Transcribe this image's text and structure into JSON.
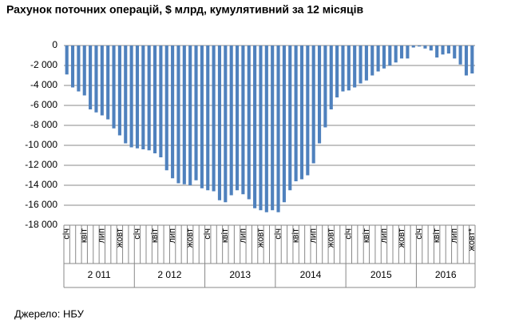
{
  "chart_data": {
    "type": "bar",
    "title": "Рахунок поточних операцій, $ млрд, кумулятивний за 12 місяців",
    "source": "Джерело: НБУ",
    "color": "#4f81bd",
    "grid": true,
    "ylim": [
      -18000,
      0
    ],
    "yticks": [
      0,
      {
        "value": -2000,
        "label": "-2 000"
      },
      {
        "value": -4000,
        "label": "-4 000"
      },
      {
        "value": -6000,
        "label": "-6 000"
      },
      {
        "value": -8000,
        "label": "-8 000"
      },
      {
        "value": -10000,
        "label": "-10 000"
      },
      {
        "value": -12000,
        "label": "-12 000"
      },
      {
        "value": -14000,
        "label": "-14 000"
      },
      {
        "value": -16000,
        "label": "-16 000"
      },
      {
        "value": -18000,
        "label": "-18 000"
      }
    ],
    "year_groups": [
      "2 011",
      "2 012",
      "2013",
      "2014",
      "2015",
      "2016"
    ],
    "categories": [
      "січ",
      null,
      null,
      "квіт",
      null,
      null,
      "лип",
      null,
      null,
      "жовт",
      null,
      null,
      "січ",
      null,
      null,
      "квіт",
      null,
      null,
      "лип",
      null,
      null,
      "жовт",
      null,
      null,
      "січ",
      null,
      null,
      "квіт",
      null,
      null,
      "лип",
      null,
      null,
      "жовт",
      null,
      null,
      "січ",
      null,
      null,
      "квіт",
      null,
      null,
      "лип",
      null,
      null,
      "жовт",
      null,
      null,
      "січ",
      null,
      null,
      "квіт",
      null,
      null,
      "лип",
      null,
      null,
      "жовт",
      null,
      null,
      "січ",
      null,
      null,
      "квіт",
      null,
      null,
      "лип",
      null,
      null,
      "жовт*"
    ],
    "values": [
      -2900,
      -4200,
      -4600,
      -5000,
      -6400,
      -6700,
      -7000,
      -7400,
      -8300,
      -9000,
      -9800,
      -10200,
      -10300,
      -10400,
      -10500,
      -10800,
      -11200,
      -12500,
      -13300,
      -13800,
      -13900,
      -14000,
      -13500,
      -14300,
      -14500,
      -14600,
      -15500,
      -15700,
      -15000,
      -14500,
      -14900,
      -15400,
      -16300,
      -16500,
      -16700,
      -16500,
      -16700,
      -15700,
      -14500,
      -13600,
      -13400,
      -13000,
      -11800,
      -9800,
      -8200,
      -6400,
      -5200,
      -4600,
      -4500,
      -4200,
      -3800,
      -3500,
      -3000,
      -2600,
      -2300,
      -2000,
      -1700,
      -1300,
      -1300,
      -200,
      -100,
      -300,
      -500,
      -1200,
      -900,
      -800,
      -1300,
      -1900,
      -3000,
      -2800
    ]
  }
}
